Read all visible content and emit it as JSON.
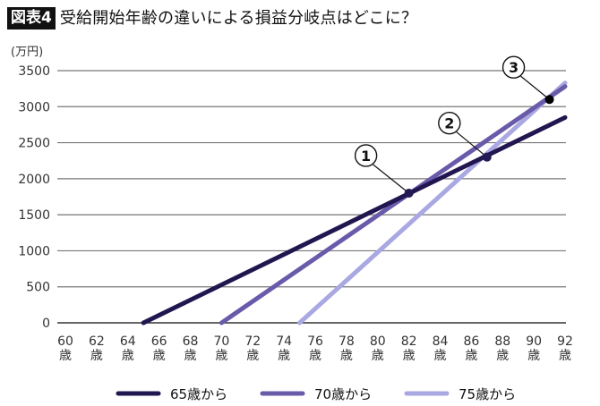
{
  "figure": {
    "label": "図表4",
    "title": "受給開始年齢の違いによる損益分岐点はどこに？"
  },
  "chart_data": {
    "type": "line",
    "title": "受給開始年齢の違いによる損益分岐点はどこに？",
    "ylabel": "(万円)",
    "xlabel": "",
    "ylim": [
      0,
      3500
    ],
    "xlim": [
      60,
      92
    ],
    "grid": true,
    "legend_position": "bottom",
    "y_ticks": [
      "3500",
      "3000",
      "2500",
      "2000",
      "1500",
      "1000",
      "500",
      "0"
    ],
    "x_ticks": [
      {
        "num": "60",
        "unit": "歳"
      },
      {
        "num": "62",
        "unit": "歳"
      },
      {
        "num": "64",
        "unit": "歳"
      },
      {
        "num": "66",
        "unit": "歳"
      },
      {
        "num": "68",
        "unit": "歳"
      },
      {
        "num": "70",
        "unit": "歳"
      },
      {
        "num": "72",
        "unit": "歳"
      },
      {
        "num": "74",
        "unit": "歳"
      },
      {
        "num": "76",
        "unit": "歳"
      },
      {
        "num": "78",
        "unit": "歳"
      },
      {
        "num": "80",
        "unit": "歳"
      },
      {
        "num": "82",
        "unit": "歳"
      },
      {
        "num": "84",
        "unit": "歳"
      },
      {
        "num": "86",
        "unit": "歳"
      },
      {
        "num": "88",
        "unit": "歳"
      },
      {
        "num": "90",
        "unit": "歳"
      },
      {
        "num": "92",
        "unit": "歳"
      }
    ],
    "series": [
      {
        "name": "65歳から",
        "color": "#211650",
        "x": [
          65,
          92
        ],
        "y": [
          0,
          2850
        ]
      },
      {
        "name": "70歳から",
        "color": "#6a5aaa",
        "x": [
          70,
          92
        ],
        "y": [
          0,
          3280
        ]
      },
      {
        "name": "75歳から",
        "color": "#aaa8e2",
        "x": [
          75,
          92
        ],
        "y": [
          0,
          3330
        ]
      }
    ],
    "annotations": [
      {
        "label": "1",
        "x": 82,
        "y": 1800,
        "description": "65歳から vs 70歳から 損益分岐点"
      },
      {
        "label": "2",
        "x": 87,
        "y": 2300,
        "description": "65歳から vs 75歳から 損益分岐点"
      },
      {
        "label": "3",
        "x": 91,
        "y": 3100,
        "description": "70歳から vs 75歳から 損益分岐点"
      }
    ]
  },
  "legend": {
    "items": [
      {
        "label": "65歳から",
        "color": "#211650"
      },
      {
        "label": "70歳から",
        "color": "#6a5aaa"
      },
      {
        "label": "75歳から",
        "color": "#aaa8e2"
      }
    ]
  }
}
